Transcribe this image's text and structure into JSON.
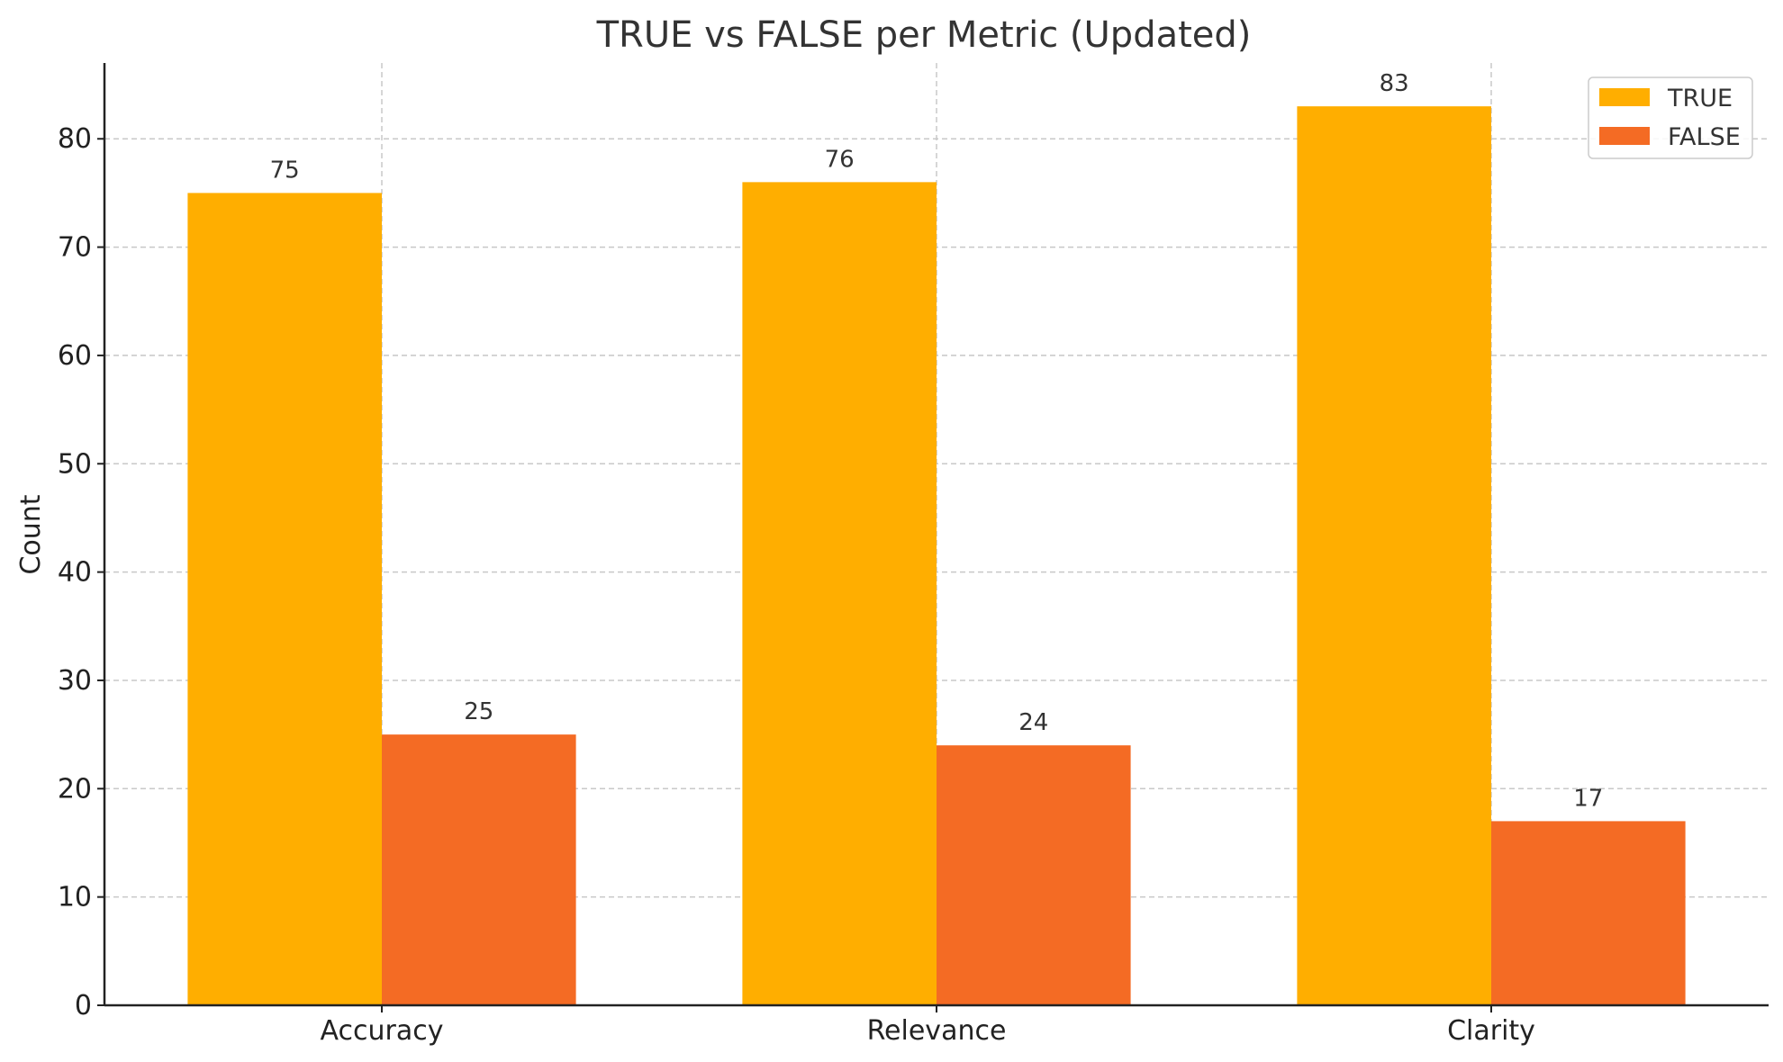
{
  "chart_data": {
    "type": "bar",
    "title": "TRUE vs FALSE per Metric (Updated)",
    "xlabel": "",
    "ylabel": "Count",
    "categories": [
      "Accuracy",
      "Relevance",
      "Clarity"
    ],
    "series": [
      {
        "name": "TRUE",
        "values": [
          75,
          76,
          83
        ],
        "color": "#FFAE00"
      },
      {
        "name": "FALSE",
        "values": [
          25,
          24,
          17
        ],
        "color": "#F46B24"
      }
    ],
    "ylim": [
      0,
      87
    ],
    "yticks": [
      0,
      10,
      20,
      30,
      40,
      50,
      60,
      70,
      80
    ],
    "grid": true,
    "legend_position": "top-right",
    "show_value_labels": true
  }
}
